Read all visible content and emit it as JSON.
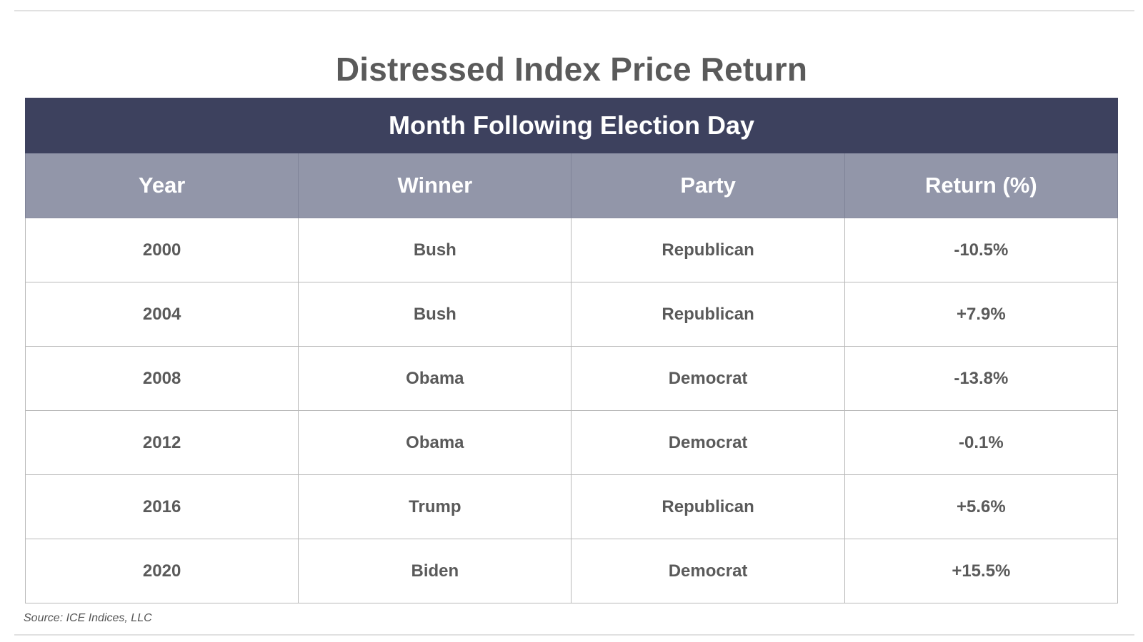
{
  "title": "Distressed Index Price Return",
  "chart_data": {
    "type": "table",
    "title": "Distressed Index Price Return",
    "subtitle": "Month Following Election Day",
    "columns": [
      "Year",
      "Winner",
      "Party",
      "Return (%)"
    ],
    "rows": [
      [
        "2000",
        "Bush",
        "Republican",
        "-10.5%"
      ],
      [
        "2004",
        "Bush",
        "Republican",
        "+7.9%"
      ],
      [
        "2008",
        "Obama",
        "Democrat",
        "-13.8%"
      ],
      [
        "2012",
        "Obama",
        "Democrat",
        "-0.1%"
      ],
      [
        "2016",
        "Trump",
        "Republican",
        "+5.6%"
      ],
      [
        "2020",
        "Biden",
        "Democrat",
        "+15.5%"
      ]
    ],
    "source": "Source: ICE Indices, LLC"
  },
  "colors": {
    "banner": "#3d415e",
    "header": "#9296a9",
    "text": "#5a5a5a"
  }
}
